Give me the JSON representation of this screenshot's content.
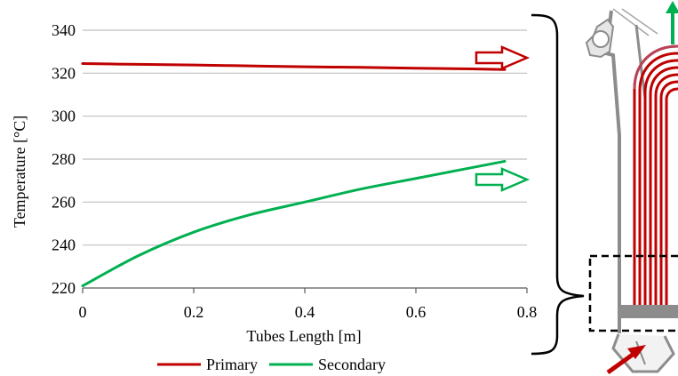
{
  "chart_data": {
    "type": "line",
    "xlabel": "Tubes Length [m]",
    "ylabel": "Temperature [°C]",
    "xlim": [
      0,
      0.8
    ],
    "ylim": [
      220,
      340
    ],
    "x_ticks": [
      "0",
      "0.2",
      "0.4",
      "0.6",
      "0.8"
    ],
    "y_ticks": [
      "220",
      "240",
      "260",
      "280",
      "300",
      "320",
      "340"
    ],
    "grid": "horizontal",
    "legend_position": "bottom",
    "series": [
      {
        "name": "Primary",
        "color": "#c00000",
        "x": [
          0,
          0.1,
          0.2,
          0.3,
          0.4,
          0.5,
          0.6,
          0.7,
          0.76
        ],
        "y": [
          324.5,
          324.1,
          323.8,
          323.4,
          323.0,
          322.7,
          322.3,
          322.0,
          321.7
        ]
      },
      {
        "name": "Secondary",
        "color": "#00b050",
        "x": [
          0,
          0.1,
          0.2,
          0.3,
          0.4,
          0.5,
          0.6,
          0.7,
          0.76
        ],
        "y": [
          221,
          235,
          246,
          254,
          260,
          266,
          271,
          276,
          279
        ]
      }
    ]
  },
  "colors": {
    "primary": "#c00000",
    "secondary": "#00b050",
    "grid": "#bfbfbf",
    "vessel": "#8c8c8c"
  },
  "icons": {
    "primary_arrow": "hollow-right-arrow-red",
    "secondary_arrow": "hollow-right-arrow-green",
    "bracket": "curly-brace",
    "schematic": "steam-generator-tube-bundle"
  }
}
